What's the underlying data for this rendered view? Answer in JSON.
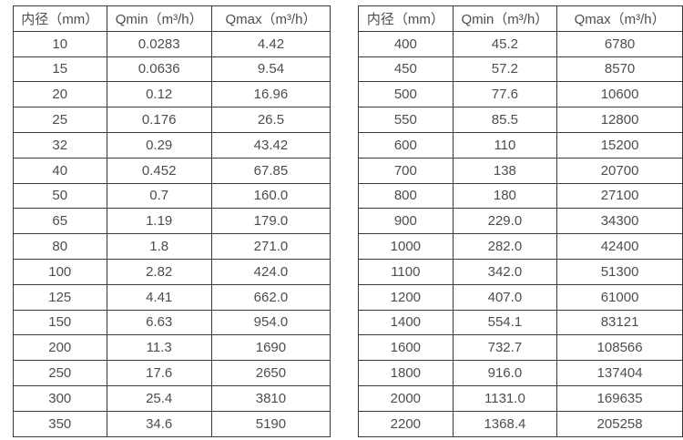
{
  "page": {
    "background_color": "#ffffff",
    "text_color": "#4d4d4d",
    "border_color": "#3a3a3a"
  },
  "tables": [
    {
      "name": "flow-table-small-diameters",
      "headers": [
        "内径（mm）",
        "Qmin（m³/h）",
        "Qmax（m³/h）"
      ],
      "rows": [
        [
          "10",
          "0.0283",
          "4.42"
        ],
        [
          "15",
          "0.0636",
          "9.54"
        ],
        [
          "20",
          "0.12",
          "16.96"
        ],
        [
          "25",
          "0.176",
          "26.5"
        ],
        [
          "32",
          "0.29",
          "43.42"
        ],
        [
          "40",
          "0.452",
          "67.85"
        ],
        [
          "50",
          "0.7",
          "160.0"
        ],
        [
          "65",
          "1.19",
          "179.0"
        ],
        [
          "80",
          "1.8",
          "271.0"
        ],
        [
          "100",
          "2.82",
          "424.0"
        ],
        [
          "125",
          "4.41",
          "662.0"
        ],
        [
          "150",
          "6.63",
          "954.0"
        ],
        [
          "200",
          "11.3",
          "1690"
        ],
        [
          "250",
          "17.6",
          "2650"
        ],
        [
          "300",
          "25.4",
          "3810"
        ],
        [
          "350",
          "34.6",
          "5190"
        ]
      ]
    },
    {
      "name": "flow-table-large-diameters",
      "headers": [
        "内径（mm）",
        "Qmin（m³/h）",
        "Qmax（m³/h）"
      ],
      "rows": [
        [
          "400",
          "45.2",
          "6780"
        ],
        [
          "450",
          "57.2",
          "8570"
        ],
        [
          "500",
          "77.6",
          "10600"
        ],
        [
          "550",
          "85.5",
          "12800"
        ],
        [
          "600",
          "110",
          "15200"
        ],
        [
          "700",
          "138",
          "20700"
        ],
        [
          "800",
          "180",
          "27100"
        ],
        [
          "900",
          "229.0",
          "34300"
        ],
        [
          "1000",
          "282.0",
          "42400"
        ],
        [
          "1100",
          "342.0",
          "51300"
        ],
        [
          "1200",
          "407.0",
          "61000"
        ],
        [
          "1400",
          "554.1",
          "83121"
        ],
        [
          "1600",
          "732.7",
          "108566"
        ],
        [
          "1800",
          "916.0",
          "137404"
        ],
        [
          "2000",
          "1131.0",
          "169635"
        ],
        [
          "2200",
          "1368.4",
          "205258"
        ]
      ]
    }
  ]
}
